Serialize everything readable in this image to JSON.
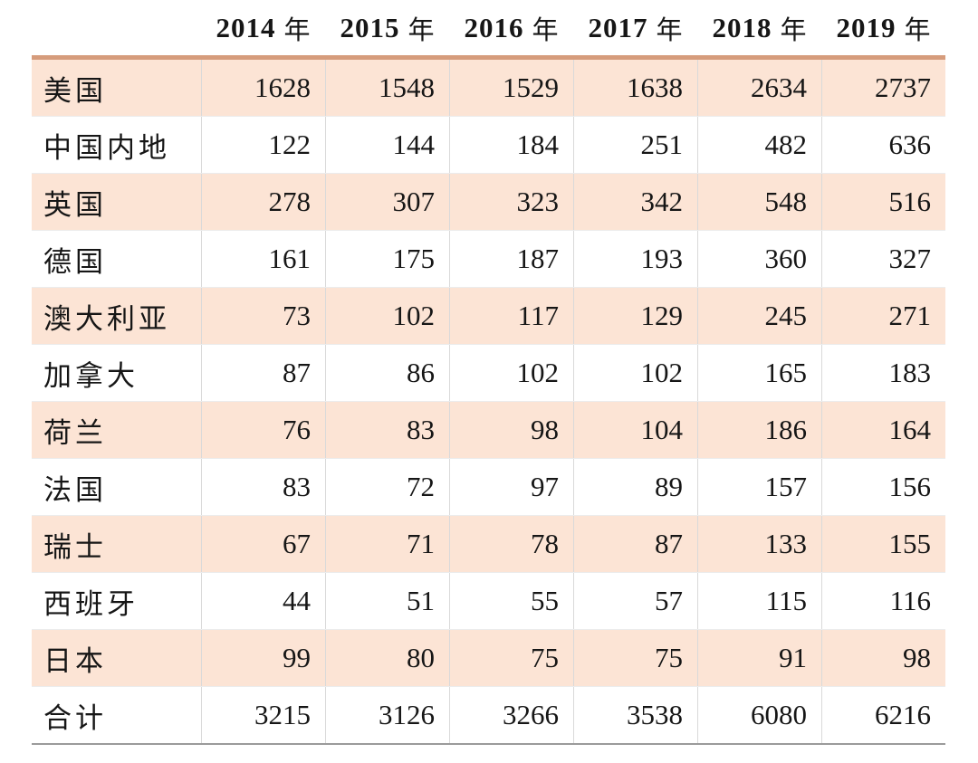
{
  "chart_data": {
    "type": "table",
    "title": "",
    "corner_label": "",
    "columns": [
      {
        "year": "2014",
        "unit": "年"
      },
      {
        "year": "2015",
        "unit": "年"
      },
      {
        "year": "2016",
        "unit": "年"
      },
      {
        "year": "2017",
        "unit": "年"
      },
      {
        "year": "2018",
        "unit": "年"
      },
      {
        "year": "2019",
        "unit": "年"
      }
    ],
    "rows": [
      {
        "label": "美国",
        "values": [
          1628,
          1548,
          1529,
          1638,
          2634,
          2737
        ],
        "shaded": true
      },
      {
        "label": "中国内地",
        "values": [
          122,
          144,
          184,
          251,
          482,
          636
        ],
        "shaded": false
      },
      {
        "label": "英国",
        "values": [
          278,
          307,
          323,
          342,
          548,
          516
        ],
        "shaded": true
      },
      {
        "label": "德国",
        "values": [
          161,
          175,
          187,
          193,
          360,
          327
        ],
        "shaded": false
      },
      {
        "label": "澳大利亚",
        "values": [
          73,
          102,
          117,
          129,
          245,
          271
        ],
        "shaded": true
      },
      {
        "label": "加拿大",
        "values": [
          87,
          86,
          102,
          102,
          165,
          183
        ],
        "shaded": false
      },
      {
        "label": "荷兰",
        "values": [
          76,
          83,
          98,
          104,
          186,
          164
        ],
        "shaded": true
      },
      {
        "label": "法国",
        "values": [
          83,
          72,
          97,
          89,
          157,
          156
        ],
        "shaded": false
      },
      {
        "label": "瑞士",
        "values": [
          67,
          71,
          78,
          87,
          133,
          155
        ],
        "shaded": true
      },
      {
        "label": "西班牙",
        "values": [
          44,
          51,
          55,
          57,
          115,
          116
        ],
        "shaded": false
      },
      {
        "label": "日本",
        "values": [
          99,
          80,
          75,
          75,
          91,
          98
        ],
        "shaded": true
      },
      {
        "label": "合计",
        "values": [
          3215,
          3126,
          3266,
          3538,
          6080,
          6216
        ],
        "shaded": false
      }
    ]
  },
  "colors": {
    "row_shade": "#fce4d5",
    "top_border": "#d69c7c",
    "divider": "#d9d9d9",
    "row_line": "#ececec",
    "bottom_border": "#9b9b9b",
    "text": "#161616"
  }
}
